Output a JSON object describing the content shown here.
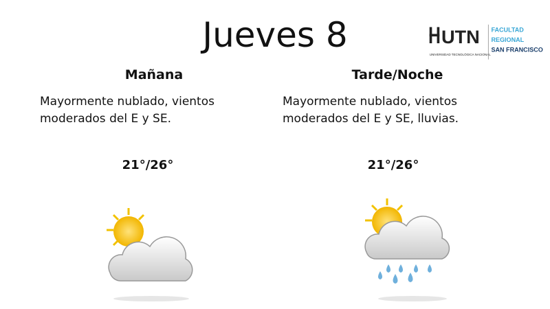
{
  "title": "Jueves 8",
  "logo": {
    "mark": "UTN",
    "subtitle": "UNIVERSIDAD TECNOLÓGICA NACIONAL",
    "faculty": [
      "FACULTAD",
      "REGIONAL",
      "SAN FRANCISCO"
    ]
  },
  "columns": [
    {
      "heading": "Mañana",
      "description": "Mayormente nublado, vientos moderados del E y SE.",
      "temperature": "21°/26°",
      "icon": "partly-cloudy-icon"
    },
    {
      "heading": "Tarde/Noche",
      "description": "Mayormente nublado, vientos moderados del E y SE, lluvias.",
      "temperature": "21°/26°",
      "icon": "partly-cloudy-rain-icon"
    }
  ]
}
